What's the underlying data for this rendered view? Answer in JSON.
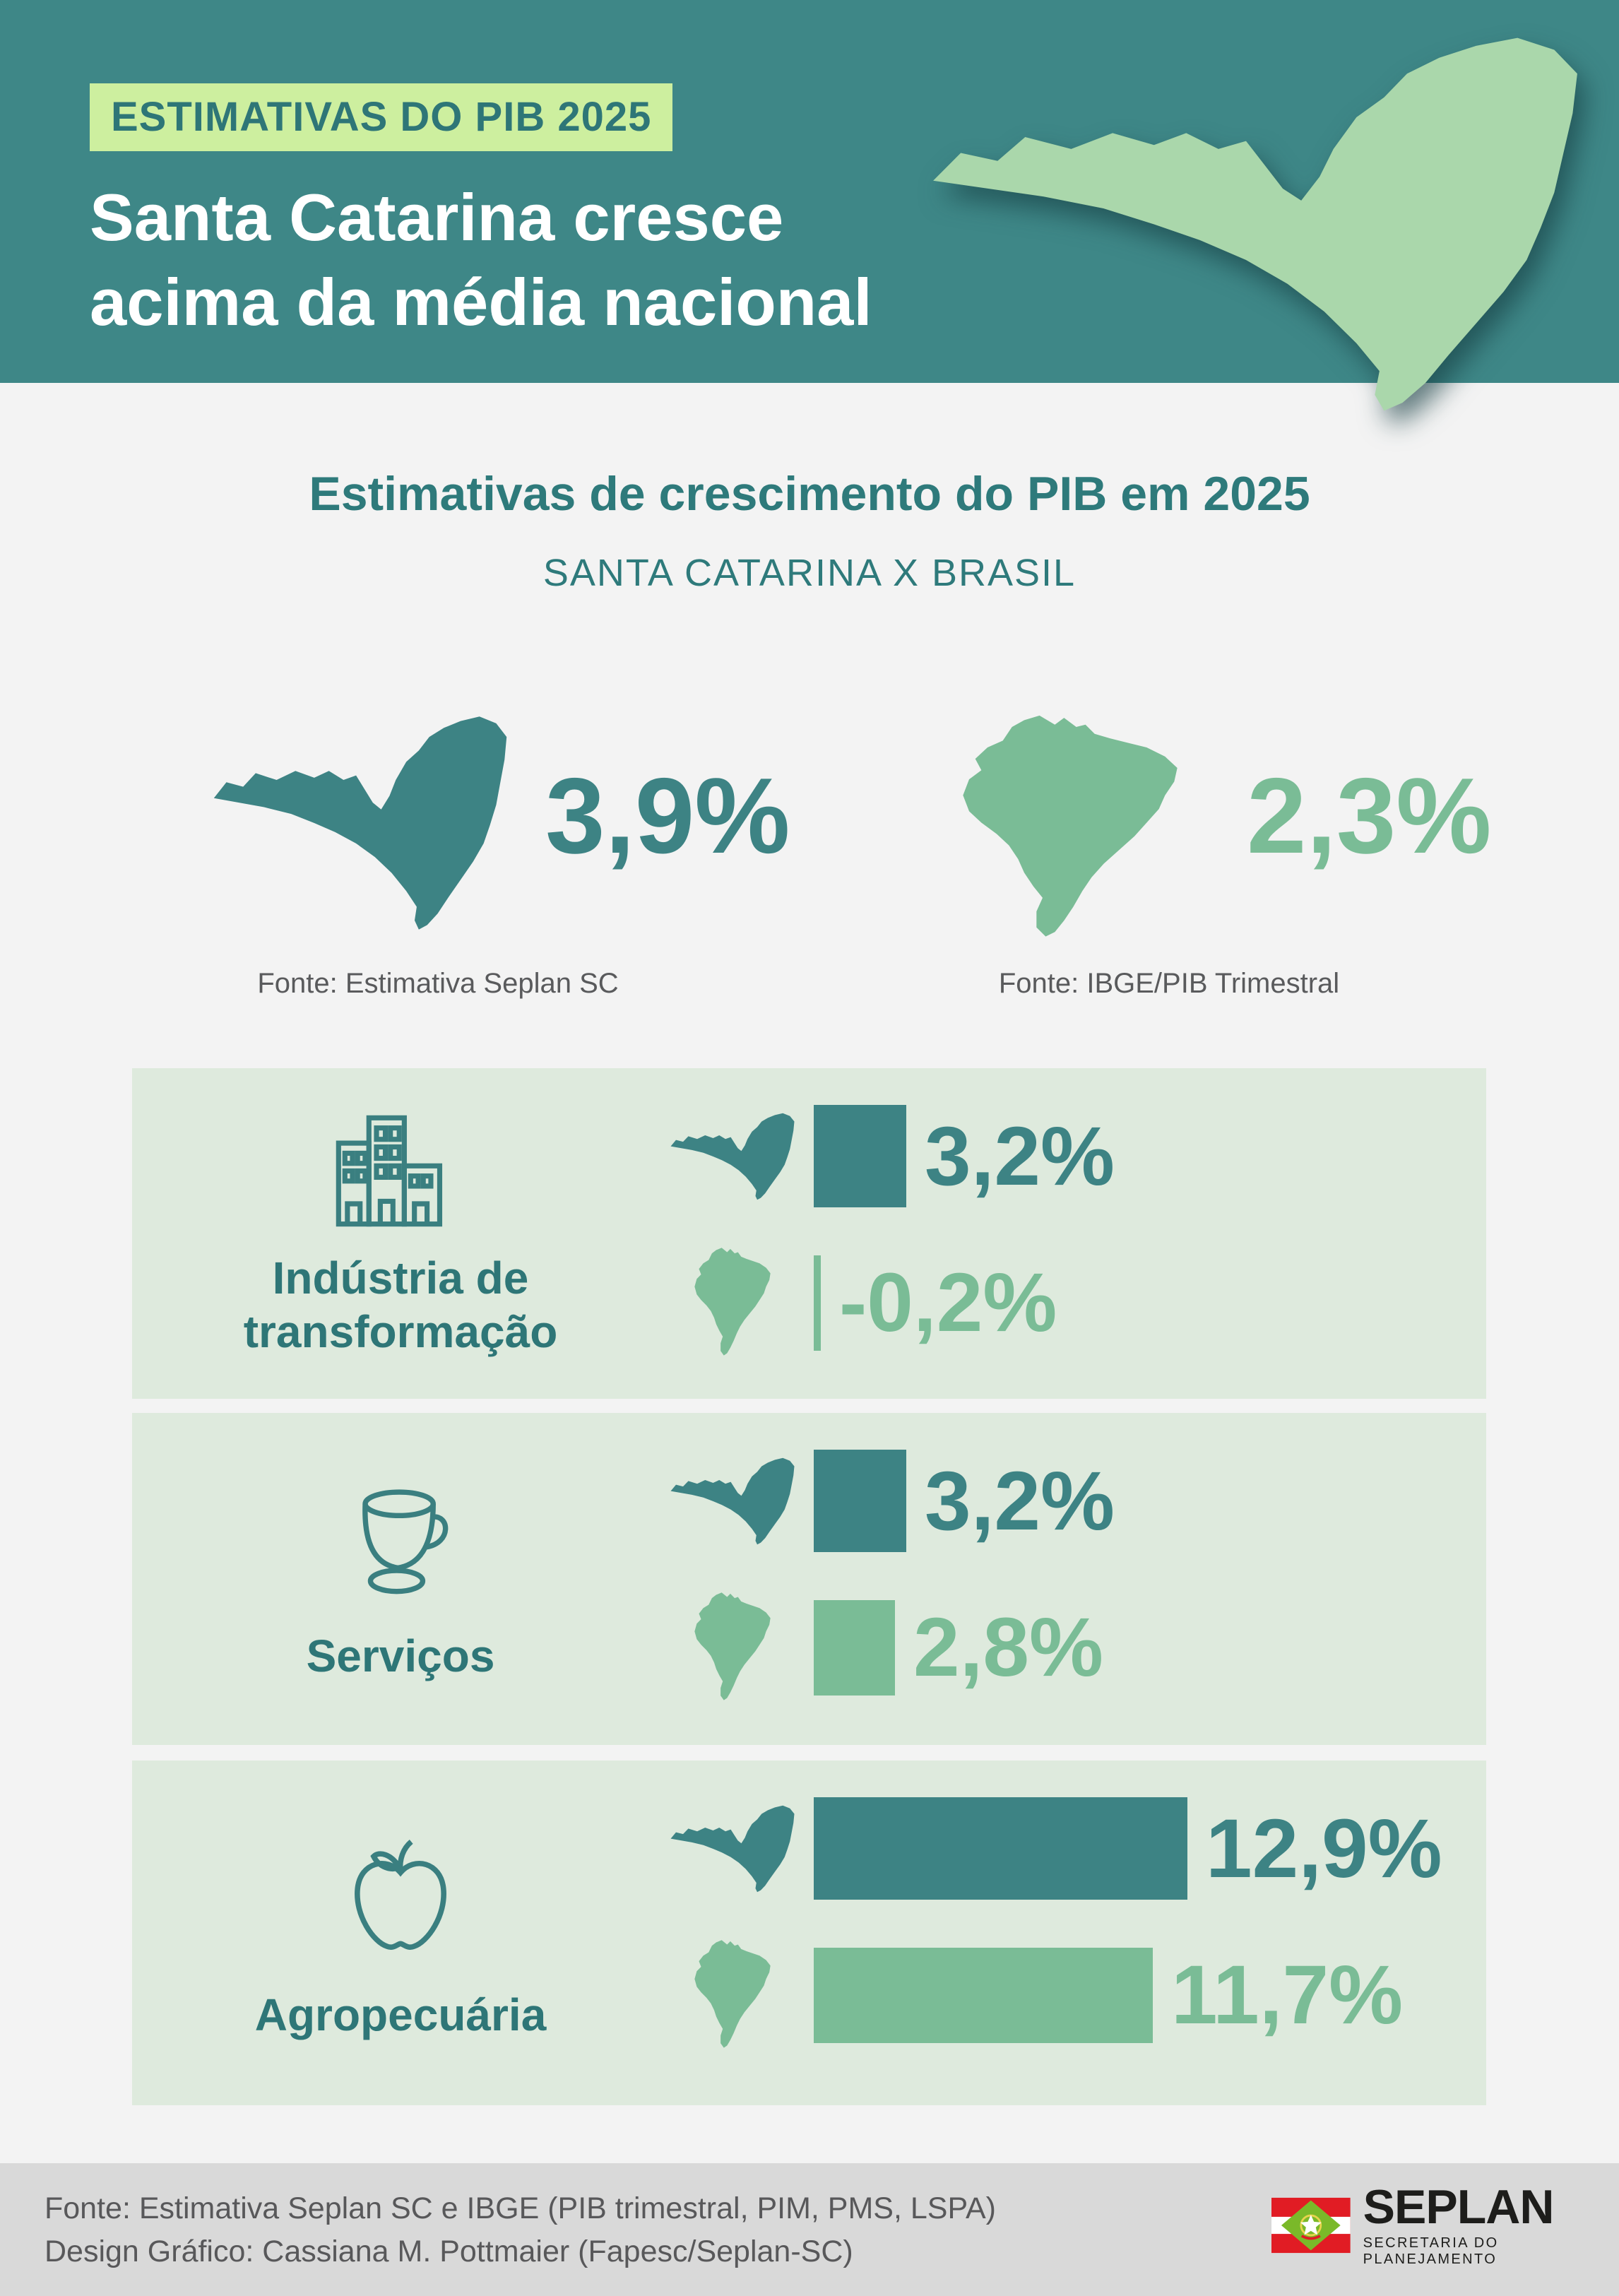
{
  "header": {
    "badge": "ESTIMATIVAS DO PIB 2025",
    "title_line1": "Santa Catarina cresce",
    "title_line2": "acima da média nacional"
  },
  "section": {
    "title": "Estimativas de crescimento do PIB em 2025",
    "subtitle": "SANTA CATARINA X BRASIL"
  },
  "comparison": {
    "sc": {
      "region": "Santa Catarina",
      "value": "3,9%",
      "source": "Fonte: Estimativa Seplan SC"
    },
    "br": {
      "region": "Brasil",
      "value": "2,3%",
      "source": "Fonte: IBGE/PIB Trimestral"
    }
  },
  "sectors": [
    {
      "label": "Indústria de transformação",
      "icon": "factory-buildings-icon",
      "sc": {
        "text": "3,2%",
        "pct": 3.2
      },
      "br": {
        "text": "-0,2%",
        "pct": -0.2
      }
    },
    {
      "label": "Serviços",
      "icon": "coffee-cup-icon",
      "sc": {
        "text": "3,2%",
        "pct": 3.2
      },
      "br": {
        "text": "2,8%",
        "pct": 2.8
      }
    },
    {
      "label": "Agropecuária",
      "icon": "apple-icon",
      "sc": {
        "text": "12,9%",
        "pct": 12.9
      },
      "br": {
        "text": "11,7%",
        "pct": 11.7
      }
    }
  ],
  "footer": {
    "source_line": "Fonte: Estimativa Seplan SC e IBGE (PIB trimestral, PIM, PMS, LSPA)",
    "design_line": "Design Gráfico: Cassiana M. Pottmaier (Fapesc/Seplan-SC)",
    "logo": {
      "name": "SEPLAN",
      "subtitle": "SECRETARIA DO PLANEJAMENTO"
    }
  },
  "colors": {
    "header_bg": "#3e8787",
    "badge_bg": "#cdef9f",
    "teal_dark": "#2e7677",
    "sc_color": "#3d8384",
    "br_color": "#7abc96",
    "header_map_green": "#aad7ab",
    "panel_bg": "#deeadd",
    "body_bg": "#f3f3f3",
    "footer_bg": "#d9d9d9",
    "flag_red": "#e11c24",
    "flag_green": "#7ab929"
  },
  "chart_data": {
    "type": "bar",
    "title": "Estimativas de crescimento do PIB em 2025",
    "subtitle": "SANTA CATARINA X BRASIL",
    "unit": "%",
    "overall": [
      {
        "name": "Santa Catarina",
        "value": 3.9,
        "source": "Fonte: Estimativa Seplan SC"
      },
      {
        "name": "Brasil",
        "value": 2.3,
        "source": "Fonte: IBGE/PIB Trimestral"
      }
    ],
    "categories": [
      "Indústria de transformação",
      "Serviços",
      "Agropecuária"
    ],
    "series": [
      {
        "name": "Santa Catarina",
        "values": [
          3.2,
          3.2,
          12.9
        ]
      },
      {
        "name": "Brasil",
        "values": [
          -0.2,
          2.8,
          11.7
        ]
      }
    ],
    "legend_position": "none",
    "grid": false
  }
}
